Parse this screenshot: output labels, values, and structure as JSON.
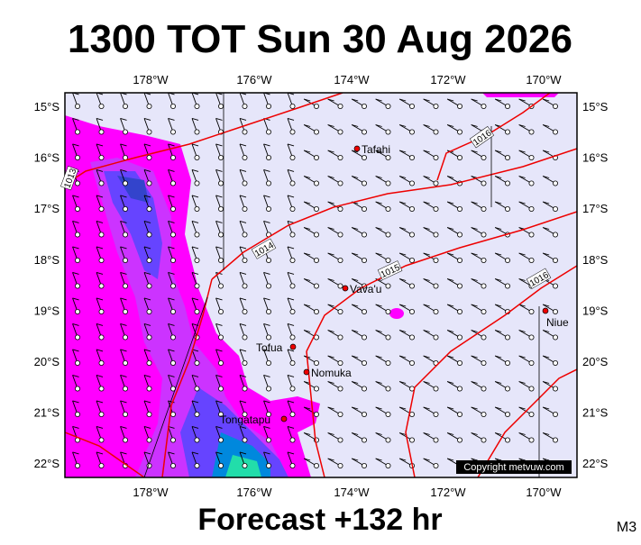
{
  "title": "1300 TOT Sun 30 Aug 2026",
  "footer": "Forecast +132 hr",
  "code": "M3",
  "copyright": "Copyright metvuw.com",
  "lon_labels": [
    "178°W",
    "176°W",
    "174°W",
    "172°W",
    "170°W"
  ],
  "lat_labels": [
    "15°S",
    "16°S",
    "17°S",
    "18°S",
    "19°S",
    "20°S",
    "21°S",
    "22°S"
  ],
  "places": [
    {
      "name": "Tafahi"
    },
    {
      "name": "Vava'u"
    },
    {
      "name": "Tofua"
    },
    {
      "name": "Nomuka"
    },
    {
      "name": "Tongatapu"
    },
    {
      "name": "Niue"
    }
  ],
  "isobars": [
    "1013",
    "1014",
    "1015",
    "1016",
    "1016"
  ]
}
